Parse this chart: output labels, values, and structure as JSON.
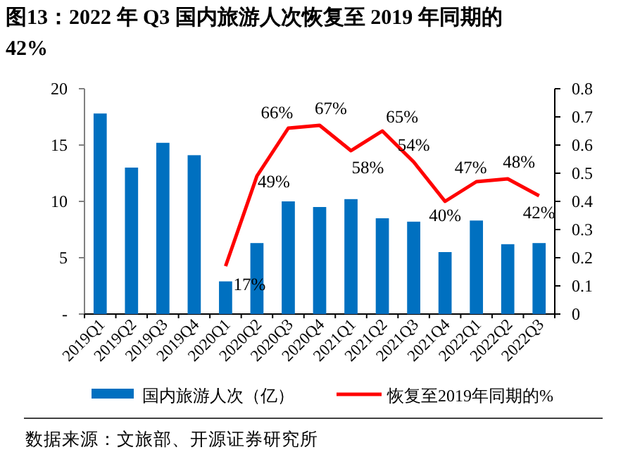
{
  "chart_data": {
    "type": "bar",
    "title": "图13：2022 年 Q3 国内旅游人次恢复至 2019 年同期的 42%",
    "categories": [
      "2019Q1",
      "2019Q2",
      "2019Q3",
      "2019Q4",
      "2020Q1",
      "2020Q2",
      "2020Q3",
      "2020Q4",
      "2021Q1",
      "2021Q2",
      "2021Q3",
      "2021Q4",
      "2022Q1",
      "2022Q2",
      "2022Q3"
    ],
    "series": [
      {
        "name": "国内旅游人次（亿）",
        "color": "#0070c0",
        "values": [
          17.8,
          13.0,
          15.2,
          14.1,
          2.9,
          6.3,
          10.0,
          9.5,
          10.2,
          8.5,
          8.2,
          5.5,
          8.3,
          6.2,
          6.3
        ]
      },
      {
        "name": "恢复至2019年同期的%",
        "type": "line",
        "axis": "y2",
        "color": "#ff0000",
        "values": [
          null,
          null,
          null,
          null,
          0.17,
          0.49,
          0.66,
          0.67,
          0.58,
          0.65,
          0.54,
          0.4,
          0.47,
          0.48,
          0.42
        ],
        "value_labels": [
          null,
          null,
          null,
          null,
          "17%",
          "49%",
          "66%",
          "67%",
          "58%",
          "65%",
          "54%",
          "40%",
          "47%",
          "48%",
          "42%"
        ]
      }
    ],
    "ylim": [
      0,
      20
    ],
    "yticks": [
      {
        "value": 0,
        "label": "-"
      },
      5,
      10,
      15,
      20
    ],
    "y2lim": [
      0,
      0.8
    ],
    "y2ticks": [
      0,
      0.1,
      0.2,
      0.3,
      0.4,
      0.5,
      0.6,
      0.7,
      0.8
    ],
    "grid": false,
    "legend": "bottom",
    "marker": "none",
    "line_style": "solid",
    "annotations": [
      "数据来源：文旅部、开源证券研究所"
    ]
  }
}
